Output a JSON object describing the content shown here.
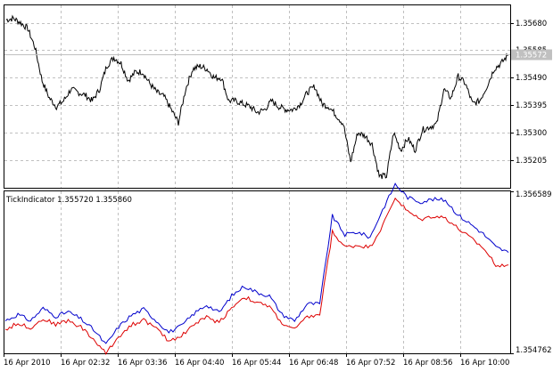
{
  "chart_data": [
    {
      "type": "line",
      "title": "",
      "xlabel": "",
      "ylabel": "",
      "ylim": [
        1.3511,
        1.3574
      ],
      "yticks": [
        "1.35680",
        "1.35585",
        "1.35490",
        "1.35395",
        "1.35300",
        "1.35205"
      ],
      "ytick_values": [
        1.3568,
        1.35585,
        1.3549,
        1.35395,
        1.353,
        1.35205
      ],
      "current_price": 1.35572,
      "current_price_label": "1.35572",
      "series_color": "#000000",
      "series": [
        {
          "name": "",
          "values": [
            1.3569,
            1.35695,
            1.3568,
            1.3566,
            1.35595,
            1.3548,
            1.3542,
            1.3539,
            1.3541,
            1.3545,
            1.3544,
            1.3543,
            1.3541,
            1.3545,
            1.3553,
            1.3556,
            1.3554,
            1.3548,
            1.3551,
            1.3551,
            1.3547,
            1.3544,
            1.35425,
            1.3538,
            1.35335,
            1.3545,
            1.3552,
            1.3553,
            1.3552,
            1.3549,
            1.3549,
            1.3541,
            1.3541,
            1.354,
            1.3539,
            1.3537,
            1.3538,
            1.3541,
            1.3539,
            1.3538,
            1.3538,
            1.354,
            1.3544,
            1.3546,
            1.354,
            1.3539,
            1.3536,
            1.3533,
            1.352,
            1.353,
            1.3529,
            1.3526,
            1.3515,
            1.3515,
            1.353,
            1.3524,
            1.3528,
            1.3524,
            1.3531,
            1.3532,
            1.3533,
            1.3545,
            1.3542,
            1.35495,
            1.3547,
            1.354,
            1.3541,
            1.3546,
            1.3552,
            1.3554,
            1.3557
          ]
        }
      ]
    },
    {
      "type": "line",
      "title": "TickIndicator 1.355720 1.355860",
      "xlabel": "",
      "ylabel": "",
      "ylim": [
        1.354762,
        1.356589
      ],
      "yticks": [
        "1.356589",
        "1.354762"
      ],
      "xticks": [
        "16 Apr 2010",
        "16 Apr 02:32",
        "16 Apr 03:36",
        "16 Apr 04:40",
        "16 Apr 05:44",
        "16 Apr 06:48",
        "16 Apr 07:52",
        "16 Apr 08:56",
        "16 Apr 10:00"
      ],
      "series": [
        {
          "name": "",
          "color": "#0000cc",
          "values": [
            1.35513,
            1.3552,
            1.35513,
            1.35527,
            1.35518,
            1.35523,
            1.35515,
            1.35503,
            1.35486,
            1.35506,
            1.35519,
            1.35526,
            1.35513,
            1.355,
            1.35507,
            1.35521,
            1.35531,
            1.35522,
            1.35541,
            1.35552,
            1.35545,
            1.35541,
            1.3552,
            1.35513,
            1.35532,
            1.35532,
            1.35631,
            1.3561,
            1.35613,
            1.35607,
            1.35638,
            1.35667,
            1.35652,
            1.35647,
            1.3565,
            1.35649,
            1.35632,
            1.35622,
            1.35611,
            1.35596,
            1.3559
          ]
        },
        {
          "name": "",
          "color": "#dd0000",
          "values": [
            1.35503,
            1.3551,
            1.35505,
            1.35515,
            1.35509,
            1.35513,
            1.35506,
            1.35492,
            1.35476,
            1.35495,
            1.35508,
            1.35514,
            1.35504,
            1.3549,
            1.35496,
            1.35509,
            1.35517,
            1.35511,
            1.35528,
            1.3554,
            1.35533,
            1.35529,
            1.3551,
            1.35503,
            1.35517,
            1.3552,
            1.35613,
            1.35596,
            1.35598,
            1.35596,
            1.3562,
            1.35652,
            1.35636,
            1.35627,
            1.35631,
            1.35629,
            1.35617,
            1.35606,
            1.35595,
            1.35576,
            1.35576
          ]
        }
      ]
    }
  ]
}
